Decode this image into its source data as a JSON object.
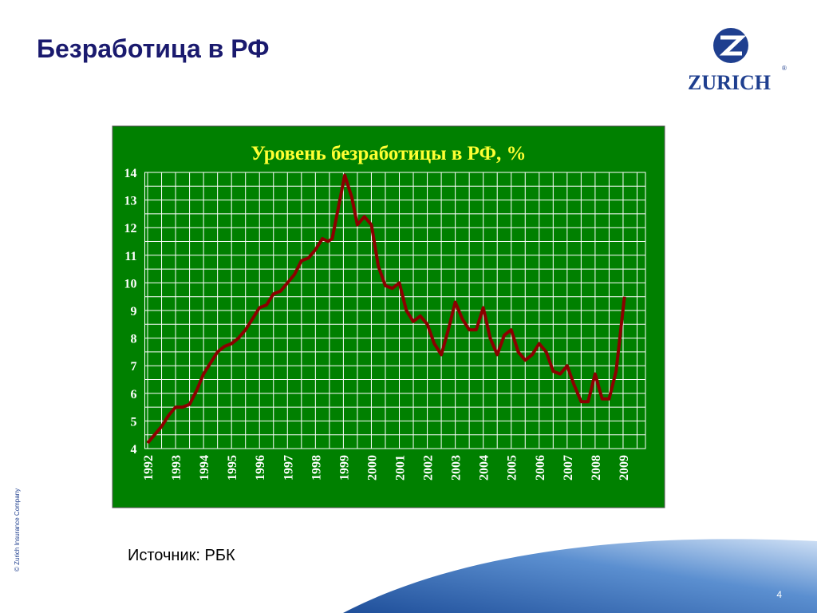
{
  "header": {
    "title": "Безработица в РФ"
  },
  "logo": {
    "text": "ZURICH",
    "mark": "®"
  },
  "footer": {
    "source": "Источник: РБК",
    "copyright": "© Zurich Insurance Company",
    "page": "4"
  },
  "chart_data": {
    "type": "line",
    "title": "Уровень безработицы в РФ, %",
    "x": [
      1992.0,
      1992.25,
      1992.5,
      1992.75,
      1993.0,
      1993.25,
      1993.5,
      1993.75,
      1994.0,
      1994.25,
      1994.5,
      1994.75,
      1995.0,
      1995.25,
      1995.5,
      1995.75,
      1996.0,
      1996.25,
      1996.5,
      1996.75,
      1997.0,
      1997.25,
      1997.5,
      1997.75,
      1998.0,
      1998.25,
      1998.45,
      1998.6,
      1999.05,
      1999.3,
      1999.5,
      1999.75,
      2000.0,
      2000.25,
      2000.5,
      2000.75,
      2001.0,
      2001.25,
      2001.5,
      2001.75,
      2002.0,
      2002.25,
      2002.5,
      2002.75,
      2003.0,
      2003.25,
      2003.5,
      2003.75,
      2004.0,
      2004.25,
      2004.5,
      2004.75,
      2005.0,
      2005.25,
      2005.5,
      2005.75,
      2006.0,
      2006.25,
      2006.5,
      2006.75,
      2007.0,
      2007.25,
      2007.5,
      2007.75,
      2008.0,
      2008.25,
      2008.5,
      2008.75,
      2009.05
    ],
    "values": [
      4.2,
      4.5,
      4.8,
      5.2,
      5.5,
      5.5,
      5.6,
      6.1,
      6.7,
      7.1,
      7.5,
      7.7,
      7.8,
      8.0,
      8.3,
      8.7,
      9.1,
      9.2,
      9.6,
      9.7,
      10.0,
      10.3,
      10.8,
      10.9,
      11.2,
      11.6,
      11.5,
      11.6,
      13.9,
      13.1,
      12.1,
      12.4,
      12.1,
      10.6,
      9.9,
      9.8,
      10.0,
      9.0,
      8.6,
      8.8,
      8.5,
      7.8,
      7.4,
      8.3,
      9.3,
      8.7,
      8.3,
      8.3,
      9.1,
      8.0,
      7.4,
      8.1,
      8.3,
      7.5,
      7.2,
      7.4,
      7.8,
      7.5,
      6.8,
      6.7,
      7.0,
      6.3,
      5.7,
      5.7,
      6.7,
      5.8,
      5.8,
      6.8,
      9.5
    ],
    "color": "#8b0000",
    "background": "#008000",
    "title_color": "#ffff33",
    "grid": true,
    "xlim": [
      1991.9,
      2009.8
    ],
    "xticks": [
      1992,
      1993,
      1994,
      1995,
      1996,
      1997,
      1998,
      1999,
      2000,
      2001,
      2002,
      2003,
      2004,
      2005,
      2006,
      2007,
      2008,
      2009
    ],
    "xminorticks": [
      1992.5,
      1993.5,
      1994.5,
      1995.5,
      1996.5,
      1997.5,
      1998.5,
      1999.5,
      2000.5,
      2001.5,
      2002.5,
      2003.5,
      2004.5,
      2005.5,
      2006.5,
      2007.5,
      2008.5,
      2009.5
    ],
    "ylim": [
      4,
      14
    ],
    "yticks": [
      4,
      5,
      6,
      7,
      8,
      9,
      10,
      11,
      12,
      13,
      14
    ],
    "yminorticks": [
      4.5,
      5.5,
      6.5,
      7.5,
      8.5,
      9.5,
      10.5,
      11.5,
      12.5,
      13.5
    ]
  }
}
